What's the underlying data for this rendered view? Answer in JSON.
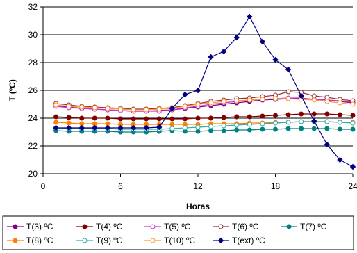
{
  "chart_data": {
    "type": "line",
    "xlabel": "Horas",
    "ylabel": "T (ºC)",
    "xlim": [
      0,
      24
    ],
    "ylim": [
      20,
      32
    ],
    "xticks": [
      "0",
      "6",
      "12",
      "18",
      "24"
    ],
    "yticks": [
      "20",
      "22",
      "24",
      "26",
      "28",
      "30",
      "32"
    ],
    "x": [
      1,
      2,
      3,
      4,
      5,
      6,
      7,
      8,
      9,
      10,
      11,
      12,
      13,
      14,
      15,
      16,
      17,
      18,
      19,
      20,
      21,
      22,
      23,
      24
    ],
    "series": [
      {
        "name": "T(3) ºC",
        "color": "#800080",
        "marker": "circle-filled",
        "values": [
          24.9,
          24.8,
          24.7,
          24.65,
          24.6,
          24.55,
          24.5,
          24.5,
          24.55,
          24.6,
          24.7,
          24.8,
          24.9,
          25.0,
          25.1,
          25.2,
          25.3,
          25.35,
          25.4,
          25.4,
          25.35,
          25.3,
          25.2,
          25.1
        ]
      },
      {
        "name": "T(4) ºC",
        "color": "#800000",
        "marker": "circle-filled",
        "values": [
          24.1,
          24.05,
          24.0,
          24.0,
          24.0,
          23.95,
          23.95,
          23.95,
          23.95,
          23.95,
          23.95,
          24.0,
          24.0,
          24.05,
          24.1,
          24.1,
          24.15,
          24.2,
          24.25,
          24.3,
          24.3,
          24.3,
          24.25,
          24.2
        ]
      },
      {
        "name": "T(5) ºC",
        "color": "#CC33CC",
        "marker": "circle-open",
        "values": [
          24.85,
          24.75,
          24.7,
          24.65,
          24.6,
          24.55,
          24.5,
          24.5,
          24.5,
          24.6,
          24.75,
          24.85,
          25.0,
          25.1,
          25.2,
          25.3,
          25.35,
          25.4,
          25.45,
          25.45,
          25.35,
          25.3,
          25.25,
          25.15
        ]
      },
      {
        "name": "T(6) ºC",
        "color": "#993333",
        "marker": "circle-open",
        "values": [
          25.05,
          24.95,
          24.85,
          24.8,
          24.75,
          24.7,
          24.65,
          24.65,
          24.7,
          24.75,
          24.9,
          25.05,
          25.2,
          25.3,
          25.4,
          25.45,
          25.55,
          25.65,
          25.9,
          25.85,
          25.6,
          25.5,
          25.35,
          25.25
        ]
      },
      {
        "name": "T(7) ºC",
        "color": "#008080",
        "marker": "circle-filled",
        "values": [
          23.1,
          23.05,
          23.05,
          23.05,
          23.05,
          23.0,
          23.0,
          23.0,
          23.05,
          23.1,
          23.05,
          23.05,
          23.1,
          23.1,
          23.15,
          23.15,
          23.2,
          23.2,
          23.25,
          23.25,
          23.25,
          23.25,
          23.2,
          23.2
        ]
      },
      {
        "name": "T(8) ºC",
        "color": "#FF8000",
        "marker": "circle-filled",
        "values": [
          23.7,
          23.65,
          23.6,
          23.6,
          23.6,
          23.55,
          23.55,
          23.55,
          23.55,
          23.55,
          23.55,
          23.55,
          23.6,
          23.6,
          23.6,
          23.65,
          23.65,
          23.7,
          23.7,
          23.75,
          23.75,
          23.75,
          23.7,
          23.7
        ]
      },
      {
        "name": "T(9) ºC",
        "color": "#33AAAA",
        "marker": "circle-open",
        "values": [
          23.3,
          23.25,
          23.25,
          23.25,
          23.25,
          23.2,
          23.2,
          23.2,
          23.2,
          23.25,
          23.3,
          23.35,
          23.4,
          23.45,
          23.5,
          23.55,
          23.6,
          23.65,
          23.7,
          23.75,
          23.75,
          23.75,
          23.7,
          23.65
        ]
      },
      {
        "name": "T(10) ºC",
        "color": "#FF9933",
        "marker": "circle-open",
        "values": [
          24.95,
          24.85,
          24.8,
          24.75,
          24.7,
          24.65,
          24.6,
          24.6,
          24.65,
          24.7,
          24.85,
          25.0,
          25.1,
          25.2,
          25.25,
          25.3,
          25.35,
          25.4,
          25.4,
          25.35,
          25.3,
          25.2,
          25.1,
          25.0
        ]
      },
      {
        "name": "T(ext) ºC",
        "color": "#000080",
        "marker": "diamond-filled",
        "values": [
          23.3,
          23.3,
          23.3,
          23.3,
          23.3,
          23.3,
          23.3,
          23.3,
          23.35,
          24.7,
          25.7,
          26.0,
          28.4,
          28.8,
          29.8,
          31.3,
          29.5,
          28.2,
          27.5,
          25.6,
          23.8,
          22.1,
          21.0,
          20.5
        ]
      }
    ]
  }
}
